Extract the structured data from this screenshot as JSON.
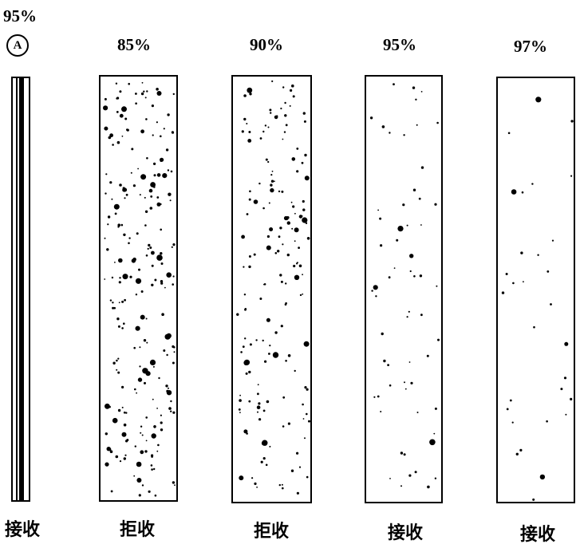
{
  "reference": {
    "percent": "95%",
    "badge": "A",
    "verdict": "接收"
  },
  "panels": [
    {
      "percent": "85%",
      "verdict": "拒收"
    },
    {
      "percent": "90%",
      "verdict": "拒收"
    },
    {
      "percent": "95%",
      "verdict": "接收"
    },
    {
      "percent": "97%",
      "verdict": "接收"
    }
  ]
}
